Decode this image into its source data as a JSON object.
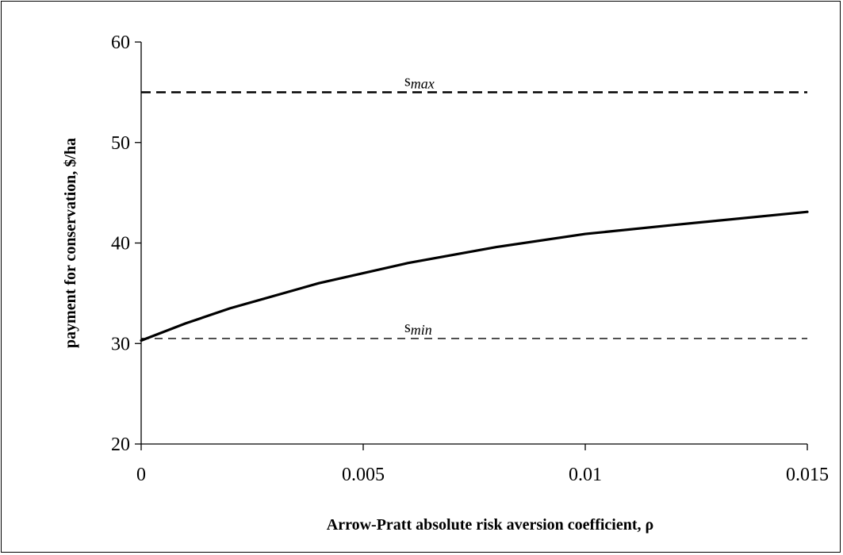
{
  "chart_data": {
    "type": "line",
    "title": "",
    "xlabel": "Arrow-Pratt absolute risk aversion coefficient, ρ",
    "ylabel": "payment for conservation, $/ha",
    "xlim": [
      0,
      0.015
    ],
    "ylim": [
      20,
      60
    ],
    "x_ticks": [
      0,
      0.005,
      0.01,
      0.015
    ],
    "x_tick_labels": [
      "0",
      "0.005",
      "0.01",
      "0.015"
    ],
    "y_ticks": [
      20,
      30,
      40,
      50,
      60
    ],
    "y_tick_labels": [
      "20",
      "30",
      "40",
      "50",
      "60"
    ],
    "grid": false,
    "legend": "none",
    "series": [
      {
        "x": [
          0,
          0.001,
          0.002,
          0.004,
          0.006,
          0.008,
          0.01,
          0.012,
          0.015
        ],
        "values": [
          30.3,
          32.0,
          33.5,
          36.0,
          38.0,
          39.6,
          40.9,
          41.8,
          43.1
        ],
        "color": "#000000",
        "style": "solid"
      }
    ],
    "reference_lines": [
      {
        "label_main": "s",
        "label_sub": "max",
        "y": 55,
        "style": "dashed",
        "color": "#000000"
      },
      {
        "label_main": "s",
        "label_sub": "min",
        "y": 30.5,
        "style": "dashed",
        "color": "#000000"
      }
    ]
  }
}
